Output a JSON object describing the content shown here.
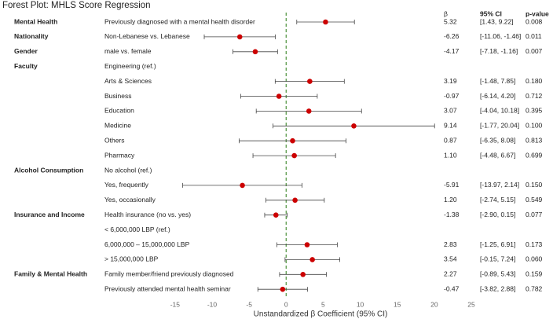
{
  "chart_data": {
    "type": "forest",
    "title": "Forest Plot: MHLS Score Regression",
    "xlabel": "Unstandardized β Coefficient (95% CI)",
    "headers": {
      "beta": "β",
      "ci": "95% CI",
      "p": "p-value"
    },
    "groups": [
      "Mental Health",
      "Nationality",
      "Gender",
      "Faculty",
      null,
      null,
      null,
      null,
      null,
      null,
      "Alcohol Consumption",
      null,
      null,
      "Insurance and Income",
      null,
      null,
      null,
      "Family & Mental Health",
      null
    ],
    "categories": [
      "Previously diagnosed with a mental health disorder",
      "Non-Lebanese vs. Lebanese",
      "male vs. female",
      "Engineering (ref.)",
      "Arts & Sciences",
      "Business",
      "Education",
      "Medicine",
      "Others",
      "Pharmacy",
      "No alcohol (ref.)",
      "Yes, frequently",
      "Yes, occasionally",
      "Health insurance (no vs. yes)",
      "< 6,000,000 LBP (ref.)",
      "6,000,000 – 15,000,000 LBP",
      "> 15,000,000 LBP",
      "Family member/friend previously diagnosed",
      "Previously attended mental health seminar"
    ],
    "values": [
      5.32,
      -6.26,
      -4.17,
      null,
      3.19,
      -0.97,
      3.07,
      9.14,
      0.87,
      1.1,
      null,
      -5.91,
      1.2,
      -1.38,
      null,
      2.83,
      3.54,
      2.27,
      -0.47
    ],
    "value_labels": [
      "5.32",
      "-6.26",
      "-4.17",
      null,
      "3.19",
      "-0.97",
      "3.07",
      "9.14",
      "0.87",
      "1.10",
      null,
      "-5.91",
      "1.20",
      "-1.38",
      null,
      "2.83",
      "3.54",
      "2.27",
      "-0.47"
    ],
    "ci_low": [
      1.43,
      -11.06,
      -7.18,
      null,
      -1.48,
      -6.14,
      -4.04,
      -1.77,
      -6.35,
      -4.48,
      null,
      -13.97,
      -2.74,
      -2.9,
      null,
      -1.25,
      -0.15,
      -0.89,
      -3.82
    ],
    "ci_high": [
      9.22,
      -1.46,
      -1.16,
      null,
      7.85,
      4.2,
      10.18,
      20.04,
      8.08,
      6.67,
      null,
      2.14,
      5.15,
      0.15,
      null,
      6.91,
      7.24,
      5.43,
      2.88
    ],
    "ci_labels": [
      "[1.43, 9.22]",
      "[-11.06, -1.46]",
      "[-7.18, -1.16]",
      null,
      "[-1.48, 7.85]",
      "[-6.14, 4.20]",
      "[-4.04, 10.18]",
      "[-1.77, 20.04]",
      "[-6.35, 8.08]",
      "[-4.48, 6.67]",
      null,
      "[-13.97, 2.14]",
      "[-2.74, 5.15]",
      "[-2.90, 0.15]",
      null,
      "[-1.25, 6.91]",
      "[-0.15, 7.24]",
      "[-0.89, 5.43]",
      "[-3.82, 2.88]"
    ],
    "p_values": [
      "0.008",
      "0.011",
      "0.007",
      null,
      "0.180",
      "0.712",
      "0.395",
      "0.100",
      "0.813",
      "0.699",
      null,
      "0.150",
      "0.549",
      "0.077",
      null,
      "0.173",
      "0.060",
      "0.159",
      "0.782"
    ],
    "xlim": [
      -17,
      25
    ],
    "xticks": [
      -15,
      -10,
      -5,
      0,
      5,
      10,
      15,
      20,
      25
    ],
    "color": "#cc0000",
    "reference_line": 0,
    "reference_color": "#5a9a4a"
  }
}
